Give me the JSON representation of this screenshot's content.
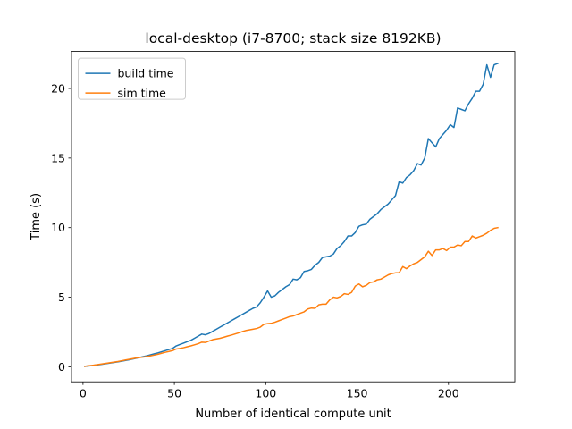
{
  "chart_data": {
    "type": "line",
    "title": "local-desktop (i7-8700; stack size 8192KB)",
    "xlabel": "Number of identical compute unit",
    "ylabel": "Time (s)",
    "xlim": [
      -6.3,
      236.3
    ],
    "ylim": [
      -1.08,
      22.66
    ],
    "xticks": [
      0,
      50,
      100,
      150,
      200
    ],
    "yticks": [
      0,
      5,
      10,
      15,
      20
    ],
    "grid": false,
    "legend_position": "top-left",
    "series": [
      {
        "name": "build time",
        "color": "#1f77b4",
        "points": [
          [
            1,
            0.03
          ],
          [
            3,
            0.06
          ],
          [
            5,
            0.09
          ],
          [
            7,
            0.12
          ],
          [
            9,
            0.15
          ],
          [
            11,
            0.19
          ],
          [
            13,
            0.23
          ],
          [
            15,
            0.27
          ],
          [
            17,
            0.31
          ],
          [
            19,
            0.35
          ],
          [
            21,
            0.4
          ],
          [
            23,
            0.45
          ],
          [
            25,
            0.5
          ],
          [
            27,
            0.55
          ],
          [
            29,
            0.61
          ],
          [
            31,
            0.67
          ],
          [
            33,
            0.73
          ],
          [
            35,
            0.79
          ],
          [
            37,
            0.86
          ],
          [
            39,
            0.93
          ],
          [
            41,
            1.0
          ],
          [
            43,
            1.08
          ],
          [
            45,
            1.16
          ],
          [
            47,
            1.24
          ],
          [
            49,
            1.32
          ],
          [
            51,
            1.5
          ],
          [
            53,
            1.6
          ],
          [
            55,
            1.7
          ],
          [
            57,
            1.8
          ],
          [
            59,
            1.9
          ],
          [
            61,
            2.05
          ],
          [
            63,
            2.2
          ],
          [
            65,
            2.35
          ],
          [
            67,
            2.3
          ],
          [
            69,
            2.4
          ],
          [
            71,
            2.55
          ],
          [
            73,
            2.7
          ],
          [
            75,
            2.85
          ],
          [
            77,
            3.0
          ],
          [
            79,
            3.15
          ],
          [
            81,
            3.3
          ],
          [
            83,
            3.45
          ],
          [
            85,
            3.6
          ],
          [
            87,
            3.75
          ],
          [
            89,
            3.9
          ],
          [
            91,
            4.05
          ],
          [
            93,
            4.2
          ],
          [
            95,
            4.3
          ],
          [
            97,
            4.6
          ],
          [
            99,
            5.0
          ],
          [
            101,
            5.45
          ],
          [
            103,
            5.0
          ],
          [
            105,
            5.1
          ],
          [
            107,
            5.35
          ],
          [
            109,
            5.55
          ],
          [
            111,
            5.75
          ],
          [
            113,
            5.9
          ],
          [
            115,
            6.3
          ],
          [
            117,
            6.25
          ],
          [
            119,
            6.4
          ],
          [
            121,
            6.85
          ],
          [
            123,
            6.9
          ],
          [
            125,
            7.0
          ],
          [
            127,
            7.3
          ],
          [
            129,
            7.5
          ],
          [
            131,
            7.85
          ],
          [
            133,
            7.9
          ],
          [
            135,
            7.95
          ],
          [
            137,
            8.1
          ],
          [
            139,
            8.5
          ],
          [
            141,
            8.7
          ],
          [
            143,
            9.0
          ],
          [
            145,
            9.4
          ],
          [
            147,
            9.4
          ],
          [
            149,
            9.65
          ],
          [
            151,
            10.1
          ],
          [
            153,
            10.2
          ],
          [
            155,
            10.25
          ],
          [
            157,
            10.6
          ],
          [
            159,
            10.8
          ],
          [
            161,
            11.0
          ],
          [
            163,
            11.3
          ],
          [
            165,
            11.5
          ],
          [
            167,
            11.7
          ],
          [
            169,
            12.0
          ],
          [
            171,
            12.3
          ],
          [
            173,
            13.3
          ],
          [
            175,
            13.2
          ],
          [
            177,
            13.6
          ],
          [
            179,
            13.8
          ],
          [
            181,
            14.1
          ],
          [
            183,
            14.6
          ],
          [
            185,
            14.5
          ],
          [
            187,
            15.0
          ],
          [
            189,
            16.4
          ],
          [
            191,
            16.1
          ],
          [
            193,
            15.8
          ],
          [
            195,
            16.4
          ],
          [
            197,
            16.7
          ],
          [
            199,
            17.0
          ],
          [
            201,
            17.4
          ],
          [
            203,
            17.2
          ],
          [
            205,
            18.6
          ],
          [
            207,
            18.5
          ],
          [
            209,
            18.4
          ],
          [
            211,
            18.9
          ],
          [
            213,
            19.3
          ],
          [
            215,
            19.8
          ],
          [
            217,
            19.8
          ],
          [
            219,
            20.3
          ],
          [
            221,
            21.7
          ],
          [
            223,
            20.8
          ],
          [
            225,
            21.7
          ],
          [
            227,
            21.8
          ]
        ]
      },
      {
        "name": "sim time",
        "color": "#ff7f0e",
        "points": [
          [
            1,
            0.03
          ],
          [
            3,
            0.07
          ],
          [
            5,
            0.1
          ],
          [
            7,
            0.14
          ],
          [
            9,
            0.18
          ],
          [
            11,
            0.22
          ],
          [
            13,
            0.26
          ],
          [
            15,
            0.3
          ],
          [
            17,
            0.34
          ],
          [
            19,
            0.38
          ],
          [
            21,
            0.43
          ],
          [
            23,
            0.48
          ],
          [
            25,
            0.53
          ],
          [
            27,
            0.58
          ],
          [
            29,
            0.63
          ],
          [
            31,
            0.67
          ],
          [
            33,
            0.7
          ],
          [
            35,
            0.74
          ],
          [
            37,
            0.79
          ],
          [
            39,
            0.84
          ],
          [
            41,
            0.9
          ],
          [
            43,
            0.97
          ],
          [
            45,
            1.04
          ],
          [
            47,
            1.1
          ],
          [
            49,
            1.16
          ],
          [
            51,
            1.28
          ],
          [
            53,
            1.32
          ],
          [
            55,
            1.37
          ],
          [
            57,
            1.44
          ],
          [
            59,
            1.5
          ],
          [
            61,
            1.58
          ],
          [
            63,
            1.66
          ],
          [
            65,
            1.77
          ],
          [
            67,
            1.75
          ],
          [
            69,
            1.85
          ],
          [
            71,
            1.95
          ],
          [
            73,
            2.0
          ],
          [
            75,
            2.05
          ],
          [
            77,
            2.12
          ],
          [
            79,
            2.2
          ],
          [
            81,
            2.27
          ],
          [
            83,
            2.35
          ],
          [
            85,
            2.43
          ],
          [
            87,
            2.52
          ],
          [
            89,
            2.6
          ],
          [
            91,
            2.65
          ],
          [
            93,
            2.7
          ],
          [
            95,
            2.75
          ],
          [
            97,
            2.85
          ],
          [
            99,
            3.05
          ],
          [
            101,
            3.1
          ],
          [
            103,
            3.12
          ],
          [
            105,
            3.2
          ],
          [
            107,
            3.3
          ],
          [
            109,
            3.4
          ],
          [
            111,
            3.5
          ],
          [
            113,
            3.6
          ],
          [
            115,
            3.65
          ],
          [
            117,
            3.75
          ],
          [
            119,
            3.85
          ],
          [
            121,
            3.95
          ],
          [
            123,
            4.15
          ],
          [
            125,
            4.22
          ],
          [
            127,
            4.2
          ],
          [
            129,
            4.45
          ],
          [
            131,
            4.5
          ],
          [
            133,
            4.5
          ],
          [
            135,
            4.8
          ],
          [
            137,
            5.0
          ],
          [
            139,
            4.95
          ],
          [
            141,
            5.05
          ],
          [
            143,
            5.25
          ],
          [
            145,
            5.2
          ],
          [
            147,
            5.35
          ],
          [
            149,
            5.8
          ],
          [
            151,
            5.95
          ],
          [
            153,
            5.75
          ],
          [
            155,
            5.85
          ],
          [
            157,
            6.05
          ],
          [
            159,
            6.1
          ],
          [
            161,
            6.25
          ],
          [
            163,
            6.3
          ],
          [
            165,
            6.45
          ],
          [
            167,
            6.6
          ],
          [
            169,
            6.7
          ],
          [
            171,
            6.75
          ],
          [
            173,
            6.75
          ],
          [
            175,
            7.2
          ],
          [
            177,
            7.05
          ],
          [
            179,
            7.25
          ],
          [
            181,
            7.4
          ],
          [
            183,
            7.5
          ],
          [
            185,
            7.7
          ],
          [
            187,
            7.9
          ],
          [
            189,
            8.3
          ],
          [
            191,
            8.0
          ],
          [
            193,
            8.4
          ],
          [
            195,
            8.4
          ],
          [
            197,
            8.5
          ],
          [
            199,
            8.35
          ],
          [
            201,
            8.6
          ],
          [
            203,
            8.6
          ],
          [
            205,
            8.75
          ],
          [
            207,
            8.7
          ],
          [
            209,
            9.0
          ],
          [
            211,
            9.0
          ],
          [
            213,
            9.4
          ],
          [
            215,
            9.25
          ],
          [
            217,
            9.35
          ],
          [
            219,
            9.45
          ],
          [
            221,
            9.6
          ],
          [
            223,
            9.8
          ],
          [
            225,
            9.95
          ],
          [
            227,
            10.0
          ]
        ]
      }
    ]
  }
}
